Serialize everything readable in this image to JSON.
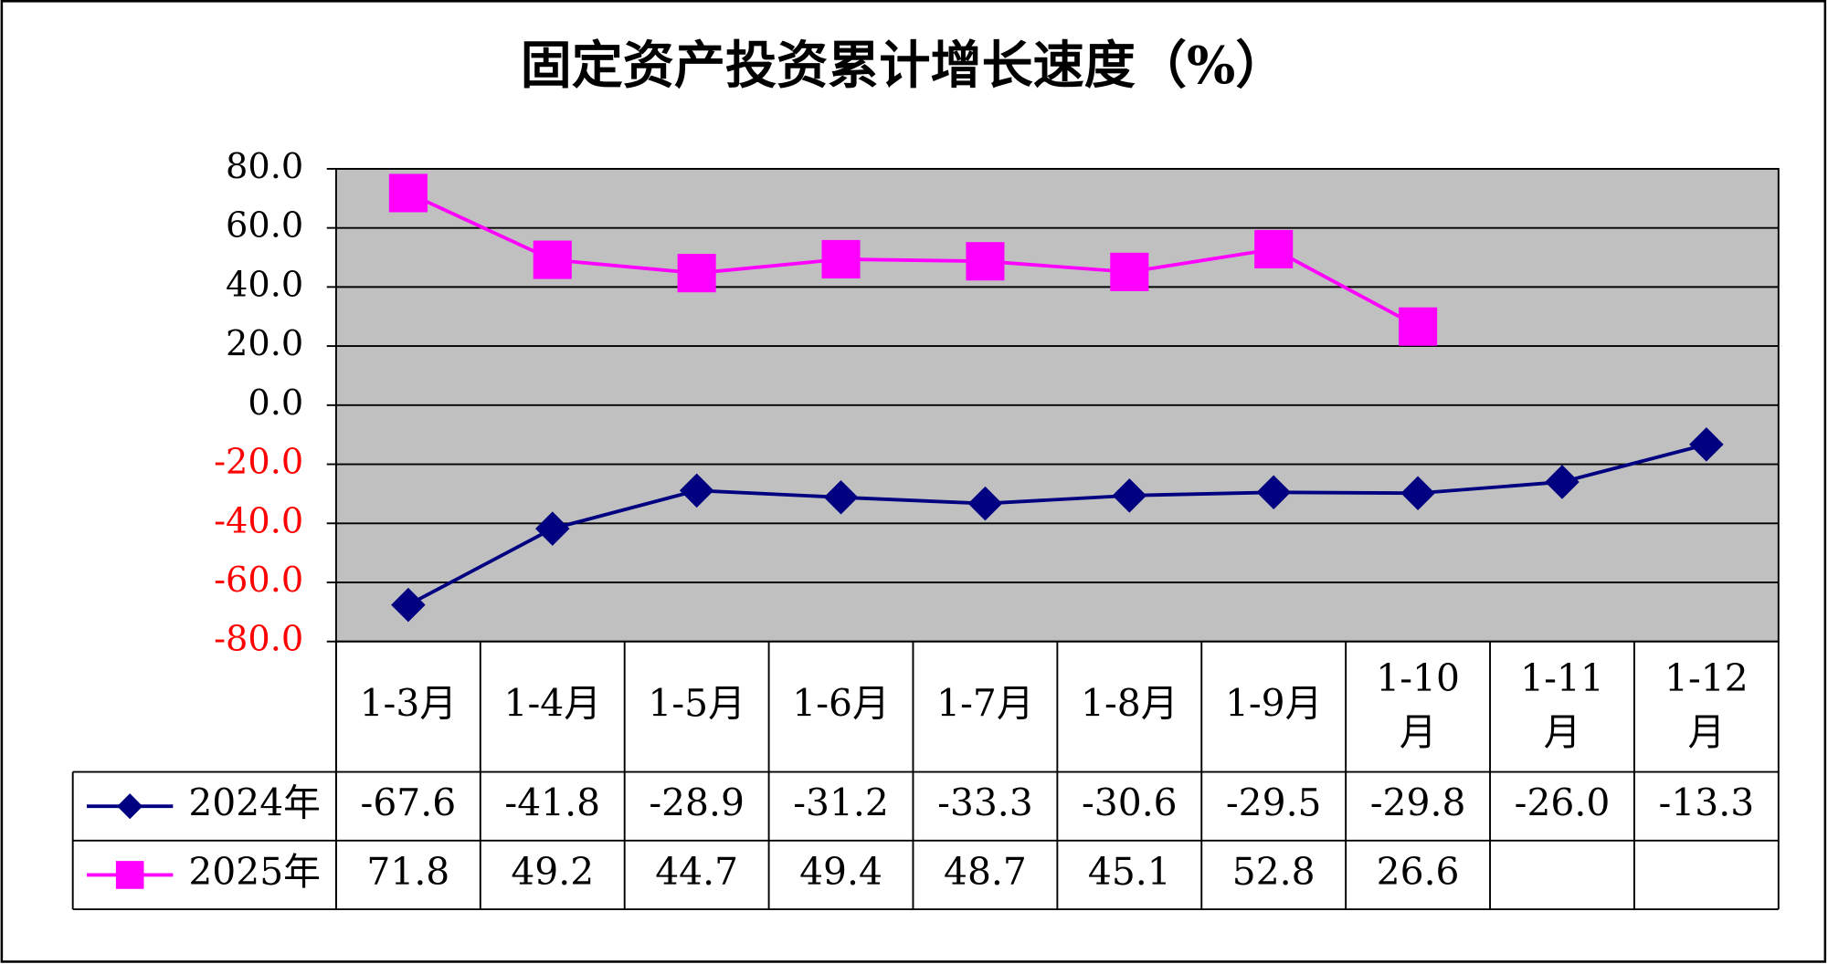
{
  "chart_data": {
    "type": "line",
    "title": "固定资产投资累计增长速度（%）",
    "categories": [
      "1-3月",
      "1-4月",
      "1-5月",
      "1-6月",
      "1-7月",
      "1-8月",
      "1-9月",
      "1-10月",
      "1-11月",
      "1-12月"
    ],
    "series": [
      {
        "name": "2024年",
        "color": "#000080",
        "marker": "diamond",
        "values": [
          -67.6,
          -41.8,
          -28.9,
          -31.2,
          -33.3,
          -30.6,
          -29.5,
          -29.8,
          -26.0,
          -13.3
        ],
        "value_labels": [
          "-67.6",
          "-41.8",
          "-28.9",
          "-31.2",
          "-33.3",
          "-30.6",
          "-29.5",
          "-29.8",
          "-26.0",
          "-13.3"
        ]
      },
      {
        "name": "2025年",
        "color": "#ff00ff",
        "marker": "square",
        "values": [
          71.8,
          49.2,
          44.7,
          49.4,
          48.7,
          45.1,
          52.8,
          26.6,
          null,
          null
        ],
        "value_labels": [
          "71.8",
          "49.2",
          "44.7",
          "49.4",
          "48.7",
          "45.1",
          "52.8",
          "26.6",
          null,
          null
        ]
      }
    ],
    "ylim": [
      -80,
      80
    ],
    "yticks": [
      {
        "value": 80,
        "label": "80.0"
      },
      {
        "value": 60,
        "label": "60.0"
      },
      {
        "value": 40,
        "label": "40.0"
      },
      {
        "value": 20,
        "label": "20.0"
      },
      {
        "value": 0,
        "label": "0.0"
      },
      {
        "value": -20,
        "label": "-20.0"
      },
      {
        "value": -40,
        "label": "-40.0"
      },
      {
        "value": -60,
        "label": "-60.0"
      },
      {
        "value": -80,
        "label": "-80.0"
      }
    ],
    "grid": true,
    "plot_background": "#c0c0c0",
    "negative_tick_color": "#ff0000",
    "data_table": true
  }
}
